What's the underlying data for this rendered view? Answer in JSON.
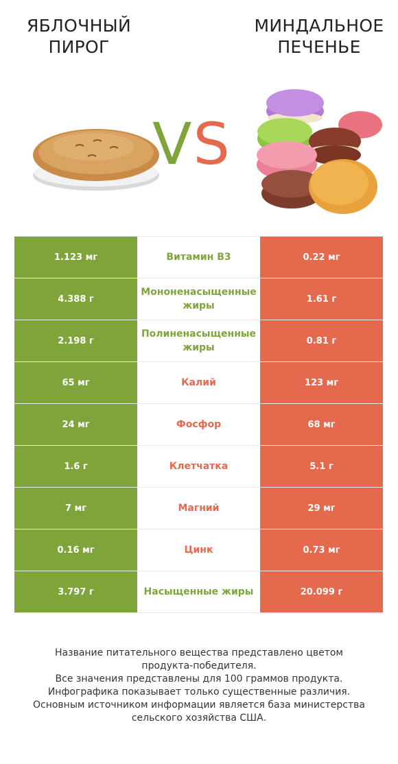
{
  "left_product": {
    "title_line1": "ЯБЛОЧНЫЙ",
    "title_line2": "ПИРОГ",
    "color": "#7fa53a"
  },
  "right_product": {
    "title_line1": "МИНДАЛЬНОЕ",
    "title_line2": "ПЕЧЕНЬЕ",
    "color": "#e5694c"
  },
  "vs": {
    "v": "V",
    "s": "S"
  },
  "rows": [
    {
      "left": "1.123 мг",
      "name": "Витамин B3",
      "winner": "left",
      "right": "0.22 мг"
    },
    {
      "left": "4.388 г",
      "name": "Мононенасыщенные жиры",
      "winner": "left",
      "right": "1.61 г"
    },
    {
      "left": "2.198 г",
      "name": "Полиненасыщенные жиры",
      "winner": "left",
      "right": "0.81 г"
    },
    {
      "left": "65 мг",
      "name": "Калий",
      "winner": "right",
      "right": "123 мг"
    },
    {
      "left": "24 мг",
      "name": "Фосфор",
      "winner": "right",
      "right": "68 мг"
    },
    {
      "left": "1.6 г",
      "name": "Клетчатка",
      "winner": "right",
      "right": "5.1 г"
    },
    {
      "left": "7 мг",
      "name": "Магний",
      "winner": "right",
      "right": "29 мг"
    },
    {
      "left": "0.16 мг",
      "name": "Цинк",
      "winner": "right",
      "right": "0.73 мг"
    },
    {
      "left": "3.797 г",
      "name": "Насыщенные жиры",
      "winner": "left",
      "right": "20.099 г"
    }
  ],
  "footer": {
    "line1": "Название питательного вещества представлено цветом",
    "line2": "продукта-победителя.",
    "line3": "Все значения представлены для 100 граммов продукта.",
    "line4": "Инфографика показывает только существенные различия.",
    "line5": "Основным источником информации является база министерства",
    "line6": "сельского хозяйства США."
  }
}
